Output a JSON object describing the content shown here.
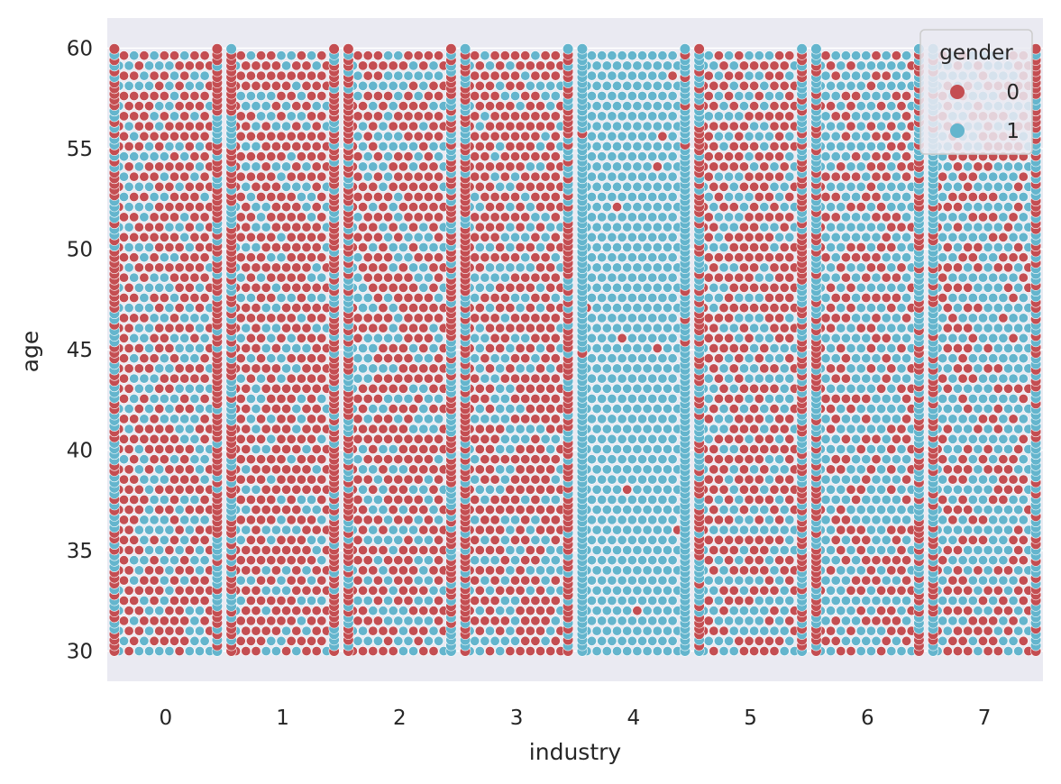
{
  "chart_data": {
    "type": "scatter",
    "subtype": "swarm",
    "title": "",
    "xlabel": "industry",
    "ylabel": "age",
    "categories": [
      "0",
      "1",
      "2",
      "3",
      "4",
      "5",
      "6",
      "7"
    ],
    "y_ticks": [
      "30",
      "35",
      "40",
      "45",
      "50",
      "55",
      "60"
    ],
    "ylim": [
      28.5,
      61.5
    ],
    "grid": true,
    "legend": {
      "title": "gender",
      "placement": "top-right",
      "entries": [
        {
          "label": "0",
          "color": "#c44e52"
        },
        {
          "label": "1",
          "color": "#64b5cd"
        }
      ]
    },
    "series": [
      {
        "name": "0",
        "color": "#c44e52",
        "share_per_category": [
          0.62,
          0.68,
          0.63,
          0.68,
          0.03,
          0.57,
          0.4,
          0.38
        ]
      },
      {
        "name": "1",
        "color": "#64b5cd",
        "share_per_category": [
          0.38,
          0.32,
          0.37,
          0.32,
          0.97,
          0.43,
          0.6,
          0.62
        ]
      }
    ],
    "y_value_range": [
      30,
      60
    ]
  }
}
